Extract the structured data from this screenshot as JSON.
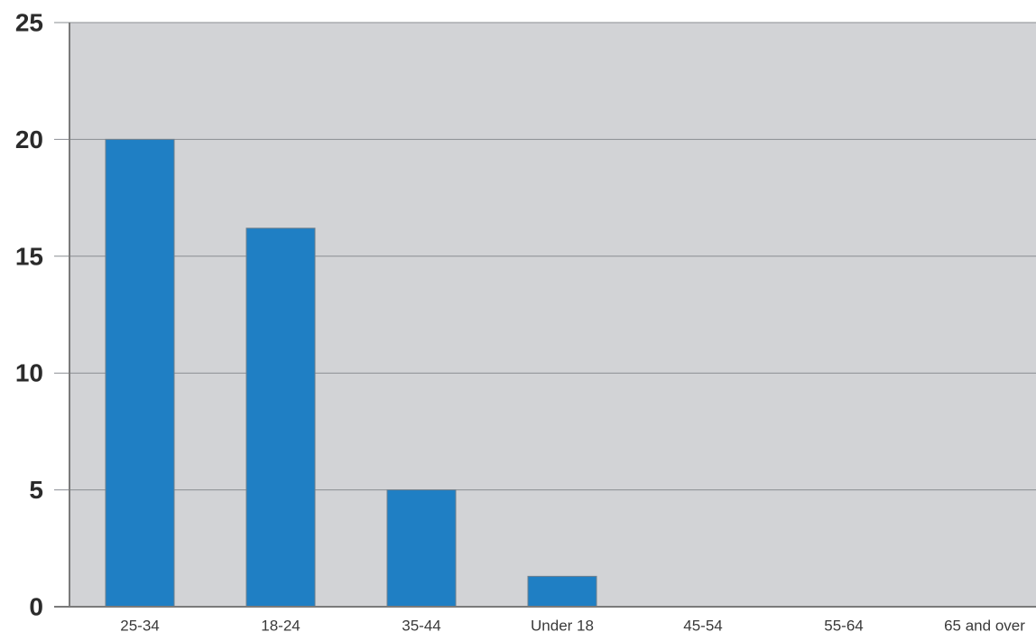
{
  "chart_data": {
    "type": "bar",
    "title": "",
    "xlabel": "",
    "ylabel": "",
    "categories": [
      "25-34",
      "18-24",
      "35-44",
      "Under 18",
      "45-54",
      "55-64",
      "65 and over"
    ],
    "values": [
      20,
      16.2,
      5,
      1.3,
      0,
      0,
      0
    ],
    "ylim": [
      0,
      25
    ],
    "yticks": [
      0,
      5,
      10,
      15,
      20,
      25
    ],
    "grid": true,
    "legend": "none",
    "colors": {
      "bar_fill": "#1f7fc4",
      "bar_stroke": "#6e7f8c",
      "plot_background": "#d2d3d6",
      "grid": "#8a8d92",
      "axis": "#7a7a7a"
    }
  }
}
